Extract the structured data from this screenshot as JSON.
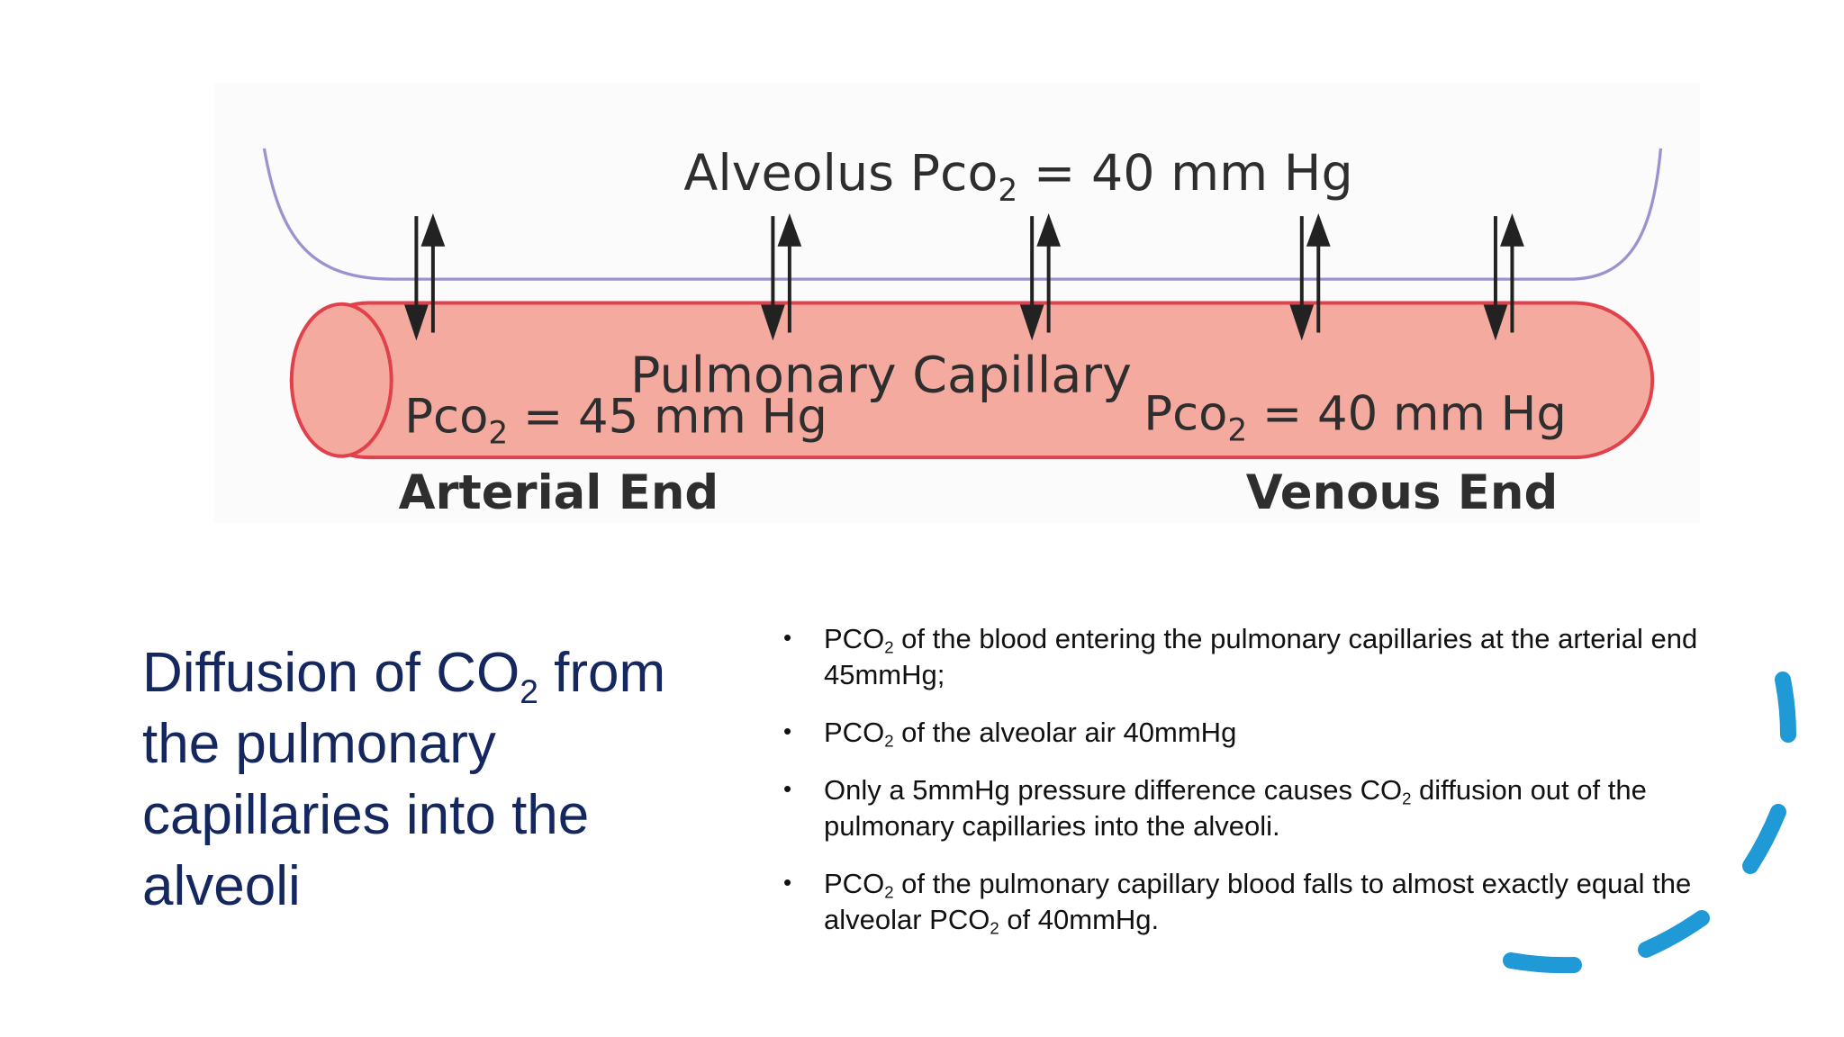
{
  "diagram": {
    "alveolus_label": [
      {
        "text": "Alveolus Pco"
      },
      {
        "sub": "2"
      },
      {
        "text": " = 40 mm Hg"
      }
    ],
    "capillary_label": "Pulmonary Capillary",
    "arterial_pco2": [
      {
        "text": "Pco"
      },
      {
        "sub": "2"
      },
      {
        "text": " = 45 mm Hg"
      }
    ],
    "venous_pco2": [
      {
        "text": "Pco"
      },
      {
        "sub": "2"
      },
      {
        "text": " = 40 mm Hg"
      }
    ],
    "arterial_end": "Arterial End",
    "venous_end": "Venous End"
  },
  "title": [
    {
      "text": "Diffusion of CO"
    },
    {
      "sub": "2"
    },
    {
      "text": " from the pulmonary capillaries into the alveoli"
    }
  ],
  "bullets": [
    [
      {
        "text": "PCO"
      },
      {
        "sub": "2"
      },
      {
        "text": " of the blood entering the pulmonary capillaries at the arterial end 45mmHg;"
      }
    ],
    [
      {
        "text": "PCO"
      },
      {
        "sub": "2"
      },
      {
        "text": " of the alveolar air 40mmHg"
      }
    ],
    [
      {
        "text": "Only a 5mmHg pressure difference causes CO"
      },
      {
        "sub": "2"
      },
      {
        "text": " diffusion out of the pulmonary capillaries into the alveoli."
      }
    ],
    [
      {
        "text": "PCO"
      },
      {
        "sub": "2"
      },
      {
        "text": " of the pulmonary capillary blood falls to almost exactly equal the alveolar PCO"
      },
      {
        "sub": "2"
      },
      {
        "text": " of 40mmHg."
      }
    ]
  ]
}
